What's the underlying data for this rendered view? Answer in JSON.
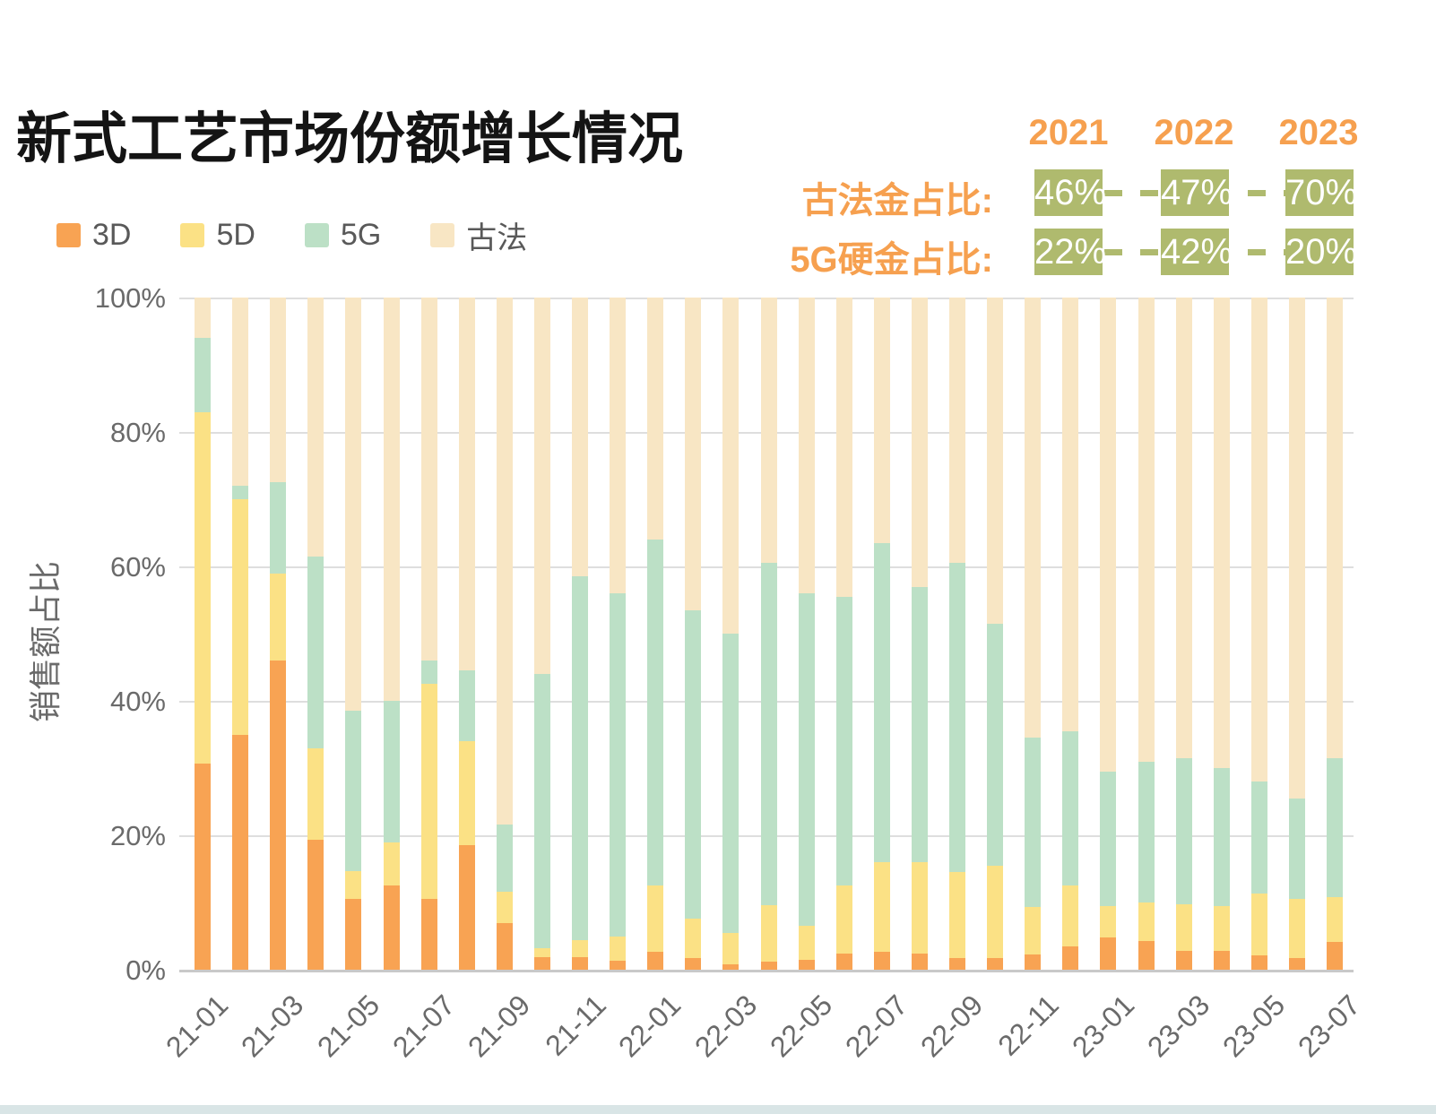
{
  "title": "新式工艺市场份额增长情况",
  "legend": {
    "items": [
      {
        "label": "3D",
        "color": "#F8A353"
      },
      {
        "label": "5D",
        "color": "#FBE185"
      },
      {
        "label": "5G",
        "color": "#BCE0C6"
      },
      {
        "label": "古法",
        "color": "#F8E6C4"
      }
    ]
  },
  "summary_table": {
    "accent_color": "#F6A04F",
    "badge_color": "#AFBA6E",
    "years": [
      "2021",
      "2022",
      "2023"
    ],
    "rows": [
      {
        "label": "古法金占比:",
        "values": [
          "46%",
          "47%",
          "70%"
        ]
      },
      {
        "label": "5G硬金占比:",
        "values": [
          "22%",
          "42%",
          "20%"
        ]
      }
    ]
  },
  "chart_data": {
    "type": "bar",
    "stacked": true,
    "unit": "percent",
    "title": "新式工艺市场份额增长情况",
    "ylabel": "销售额占比",
    "ylim": [
      0,
      100
    ],
    "grid": true,
    "y_ticks": [
      "0%",
      "20%",
      "40%",
      "60%",
      "80%",
      "100%"
    ],
    "categories": [
      "21-01",
      "21-02",
      "21-03",
      "21-04",
      "21-05",
      "21-06",
      "21-07",
      "21-08",
      "21-09",
      "21-10",
      "21-11",
      "21-12",
      "22-01",
      "22-02",
      "22-03",
      "22-04",
      "22-05",
      "22-06",
      "22-07",
      "22-08",
      "22-09",
      "22-10",
      "22-11",
      "22-12",
      "23-01",
      "23-02",
      "23-03",
      "23-04",
      "23-05",
      "23-06",
      "23-07"
    ],
    "x_tick_labels": [
      "21-01",
      "21-03",
      "21-05",
      "21-07",
      "21-09",
      "21-11",
      "22-01",
      "22-03",
      "22-05",
      "22-07",
      "22-09",
      "22-11",
      "23-01",
      "23-03",
      "23-05",
      "23-07"
    ],
    "series": [
      {
        "name": "3D",
        "color": "#F8A353",
        "values": [
          30.7,
          35,
          46,
          19.3,
          10.5,
          12.5,
          10.6,
          18.5,
          6.9,
          1.9,
          1.9,
          1.3,
          2.7,
          1.8,
          0.8,
          1.2,
          1.5,
          2.4,
          2.7,
          2.4,
          1.8,
          1.8,
          2.3,
          3.5,
          4.8,
          4.3,
          2.8,
          2.8,
          2.1,
          1.7,
          4.1
        ]
      },
      {
        "name": "5D",
        "color": "#FBE185",
        "values": [
          52.3,
          35,
          13,
          13.7,
          4.2,
          6.4,
          31.9,
          15.5,
          4.7,
          1.3,
          2.5,
          3.7,
          9.9,
          5.8,
          4.7,
          8.4,
          5.0,
          10.1,
          13.3,
          13.6,
          12.7,
          13.7,
          7.0,
          9.0,
          4.7,
          5.7,
          6.9,
          6.7,
          9.3,
          8.9,
          6.7
        ]
      },
      {
        "name": "5G",
        "color": "#BCE0C6",
        "values": [
          11,
          2,
          13.5,
          28.5,
          23.8,
          21.1,
          3.5,
          10.5,
          10.0,
          40.8,
          54.1,
          51.0,
          51.4,
          45.9,
          44.5,
          50.9,
          49.5,
          43.0,
          47.5,
          41.0,
          46.0,
          36.0,
          25.2,
          23.0,
          20.0,
          21.0,
          21.8,
          20.5,
          16.6,
          14.9,
          20.7
        ]
      },
      {
        "name": "古法",
        "color": "#F8E6C4",
        "values": [
          6,
          28,
          27.5,
          38.5,
          61.5,
          60,
          54,
          55.5,
          78.4,
          56,
          41.5,
          44,
          36,
          46.5,
          50,
          39.5,
          44,
          44.5,
          36.5,
          43,
          39.5,
          48.5,
          65.5,
          64.5,
          70.5,
          69,
          68.5,
          70,
          72,
          74.5,
          68.5
        ]
      }
    ]
  },
  "footer": {
    "strip_color": "#D9E5E6"
  }
}
